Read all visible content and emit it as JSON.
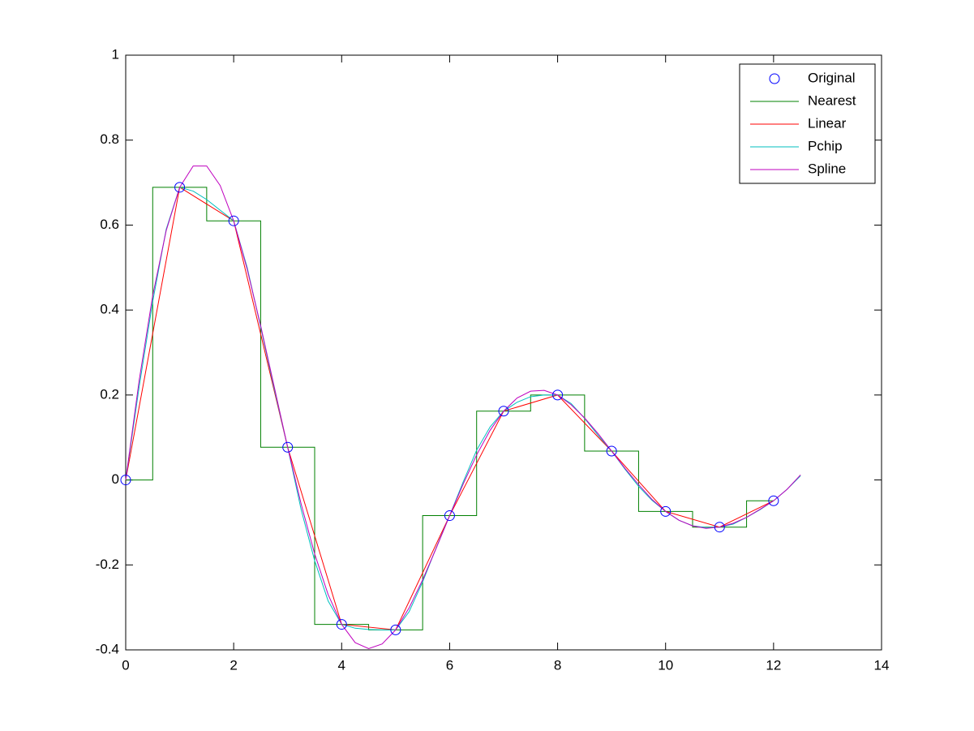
{
  "chart_data": {
    "type": "line",
    "xlim": [
      0,
      14
    ],
    "xticks": [
      0,
      2,
      4,
      6,
      8,
      10,
      12,
      14
    ],
    "ylim": [
      -0.4,
      1
    ],
    "yticks": [
      -0.4,
      -0.2,
      0,
      0.2,
      0.4,
      0.6,
      0.8,
      1
    ],
    "legend": "upper-right",
    "series": [
      {
        "name": "Original",
        "color": "#0000ff",
        "style": "marker",
        "x": [
          0,
          1,
          2,
          3,
          4,
          5,
          6,
          7,
          8,
          9,
          10,
          11,
          12
        ],
        "values": [
          0,
          0.689,
          0.61,
          0.077,
          -0.34,
          -0.353,
          -0.084,
          0.162,
          0.2,
          0.068,
          -0.074,
          -0.111,
          -0.049
        ]
      },
      {
        "name": "Nearest",
        "color": "#008000",
        "style": "line",
        "x": [
          0,
          0.5,
          0.5,
          1.5,
          1.5,
          2.5,
          2.5,
          3.5,
          3.5,
          4.5,
          4.5,
          5.5,
          5.5,
          6.5,
          6.5,
          7.5,
          7.5,
          8.5,
          8.5,
          9.5,
          9.5,
          10.5,
          10.5,
          11.5,
          11.5,
          12
        ],
        "values": [
          0,
          0,
          0.689,
          0.689,
          0.61,
          0.61,
          0.077,
          0.077,
          -0.34,
          -0.34,
          -0.353,
          -0.353,
          -0.084,
          -0.084,
          0.162,
          0.162,
          0.2,
          0.2,
          0.068,
          0.068,
          -0.074,
          -0.074,
          -0.111,
          -0.111,
          -0.049,
          -0.049
        ]
      },
      {
        "name": "Linear",
        "color": "#ff0000",
        "style": "line",
        "x": [
          0,
          1,
          2,
          3,
          4,
          5,
          6,
          7,
          8,
          9,
          10,
          11,
          12
        ],
        "values": [
          0,
          0.689,
          0.61,
          0.077,
          -0.34,
          -0.353,
          -0.084,
          0.162,
          0.2,
          0.068,
          -0.074,
          -0.111,
          -0.049
        ]
      },
      {
        "name": "Pchip",
        "color": "#00bfbf",
        "style": "line",
        "x": [
          0,
          0.25,
          0.5,
          0.75,
          1,
          1.25,
          1.5,
          1.75,
          2,
          2.25,
          2.5,
          2.75,
          3,
          3.25,
          3.5,
          3.75,
          4,
          4.25,
          4.5,
          4.75,
          5,
          5.25,
          5.5,
          5.75,
          6,
          6.25,
          6.5,
          6.75,
          7,
          7.25,
          7.5,
          7.75,
          8,
          8.25,
          8.5,
          8.75,
          9,
          9.25,
          9.5,
          9.75,
          10,
          10.25,
          10.5,
          10.75,
          11,
          11.25,
          11.5,
          11.75,
          12,
          12.25,
          12.5
        ],
        "values": [
          0,
          0.22,
          0.42,
          0.59,
          0.689,
          0.68,
          0.66,
          0.635,
          0.61,
          0.5,
          0.36,
          0.215,
          0.077,
          -0.07,
          -0.19,
          -0.285,
          -0.34,
          -0.349,
          -0.352,
          -0.353,
          -0.353,
          -0.31,
          -0.24,
          -0.16,
          -0.084,
          -0.005,
          0.07,
          0.125,
          0.162,
          0.183,
          0.196,
          0.2,
          0.2,
          0.18,
          0.145,
          0.105,
          0.068,
          0.025,
          -0.015,
          -0.048,
          -0.074,
          -0.095,
          -0.108,
          -0.112,
          -0.111,
          -0.104,
          -0.088,
          -0.07,
          -0.049,
          -0.022,
          0.01
        ]
      },
      {
        "name": "Spline",
        "color": "#bf00bf",
        "style": "line",
        "x": [
          0,
          0.25,
          0.5,
          0.75,
          1,
          1.25,
          1.5,
          1.75,
          2,
          2.25,
          2.5,
          2.75,
          3,
          3.25,
          3.5,
          3.75,
          4,
          4.25,
          4.5,
          4.75,
          5,
          5.25,
          5.5,
          5.75,
          6,
          6.25,
          6.5,
          6.75,
          7,
          7.25,
          7.5,
          7.75,
          8,
          8.25,
          8.5,
          8.75,
          9,
          9.25,
          9.5,
          9.75,
          10,
          10.25,
          10.5,
          10.75,
          11,
          11.25,
          11.5,
          11.75,
          12,
          12.25,
          12.5
        ],
        "values": [
          0,
          0.235,
          0.434,
          0.587,
          0.689,
          0.739,
          0.739,
          0.693,
          0.61,
          0.496,
          0.363,
          0.22,
          0.077,
          -0.057,
          -0.174,
          -0.27,
          -0.34,
          -0.383,
          -0.397,
          -0.386,
          -0.353,
          -0.301,
          -0.235,
          -0.161,
          -0.084,
          -0.01,
          0.059,
          0.117,
          0.162,
          0.193,
          0.209,
          0.211,
          0.2,
          0.177,
          0.146,
          0.109,
          0.068,
          0.027,
          -0.011,
          -0.046,
          -0.074,
          -0.095,
          -0.108,
          -0.114,
          -0.111,
          -0.102,
          -0.088,
          -0.069,
          -0.049,
          -0.022,
          0.012
        ]
      }
    ]
  }
}
